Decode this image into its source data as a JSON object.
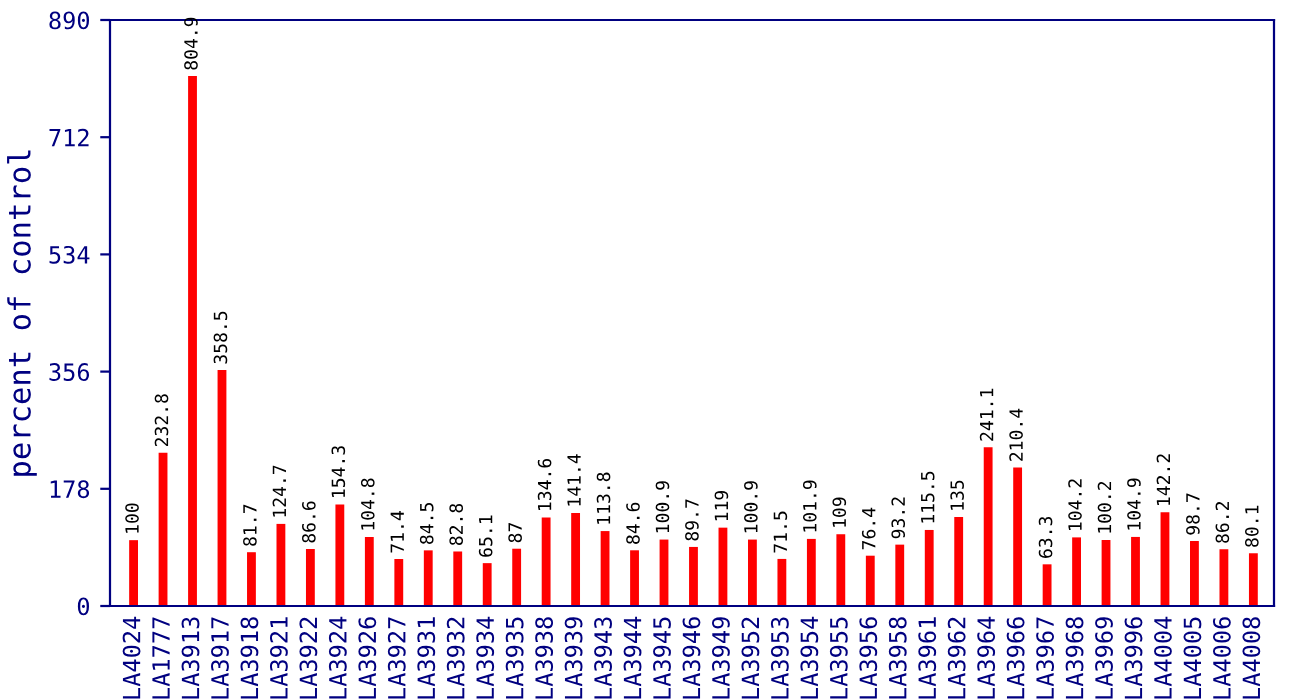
{
  "chart_data": {
    "type": "bar",
    "ylabel": "percent of control",
    "categories": [
      "LA4024",
      "LA1777",
      "LA3913",
      "LA3917",
      "LA3918",
      "LA3921",
      "LA3922",
      "LA3924",
      "LA3926",
      "LA3927",
      "LA3931",
      "LA3932",
      "LA3934",
      "LA3935",
      "LA3938",
      "LA3939",
      "LA3943",
      "LA3944",
      "LA3945",
      "LA3946",
      "LA3949",
      "LA3952",
      "LA3953",
      "LA3954",
      "LA3955",
      "LA3956",
      "LA3958",
      "LA3961",
      "LA3962",
      "LA3964",
      "LA3966",
      "LA3967",
      "LA3968",
      "LA3969",
      "LA3996",
      "LA4004",
      "LA4005",
      "LA4006",
      "LA4008"
    ],
    "values": [
      100,
      232.8,
      804.9,
      358.5,
      81.7,
      124.7,
      86.6,
      154.3,
      104.8,
      71.4,
      84.5,
      82.8,
      65.1,
      87,
      134.6,
      141.4,
      113.8,
      84.6,
      100.9,
      89.7,
      119,
      100.9,
      71.5,
      101.9,
      109,
      76.4,
      93.2,
      115.5,
      135,
      241.1,
      210.4,
      63.3,
      104.2,
      100.2,
      104.9,
      142.2,
      98.7,
      86.2,
      80.1
    ],
    "color": "#ff0000",
    "data_labels": true,
    "ylim": [
      0,
      890
    ],
    "yticks": [
      0,
      178,
      356,
      534,
      712,
      890
    ],
    "grid": false
  }
}
